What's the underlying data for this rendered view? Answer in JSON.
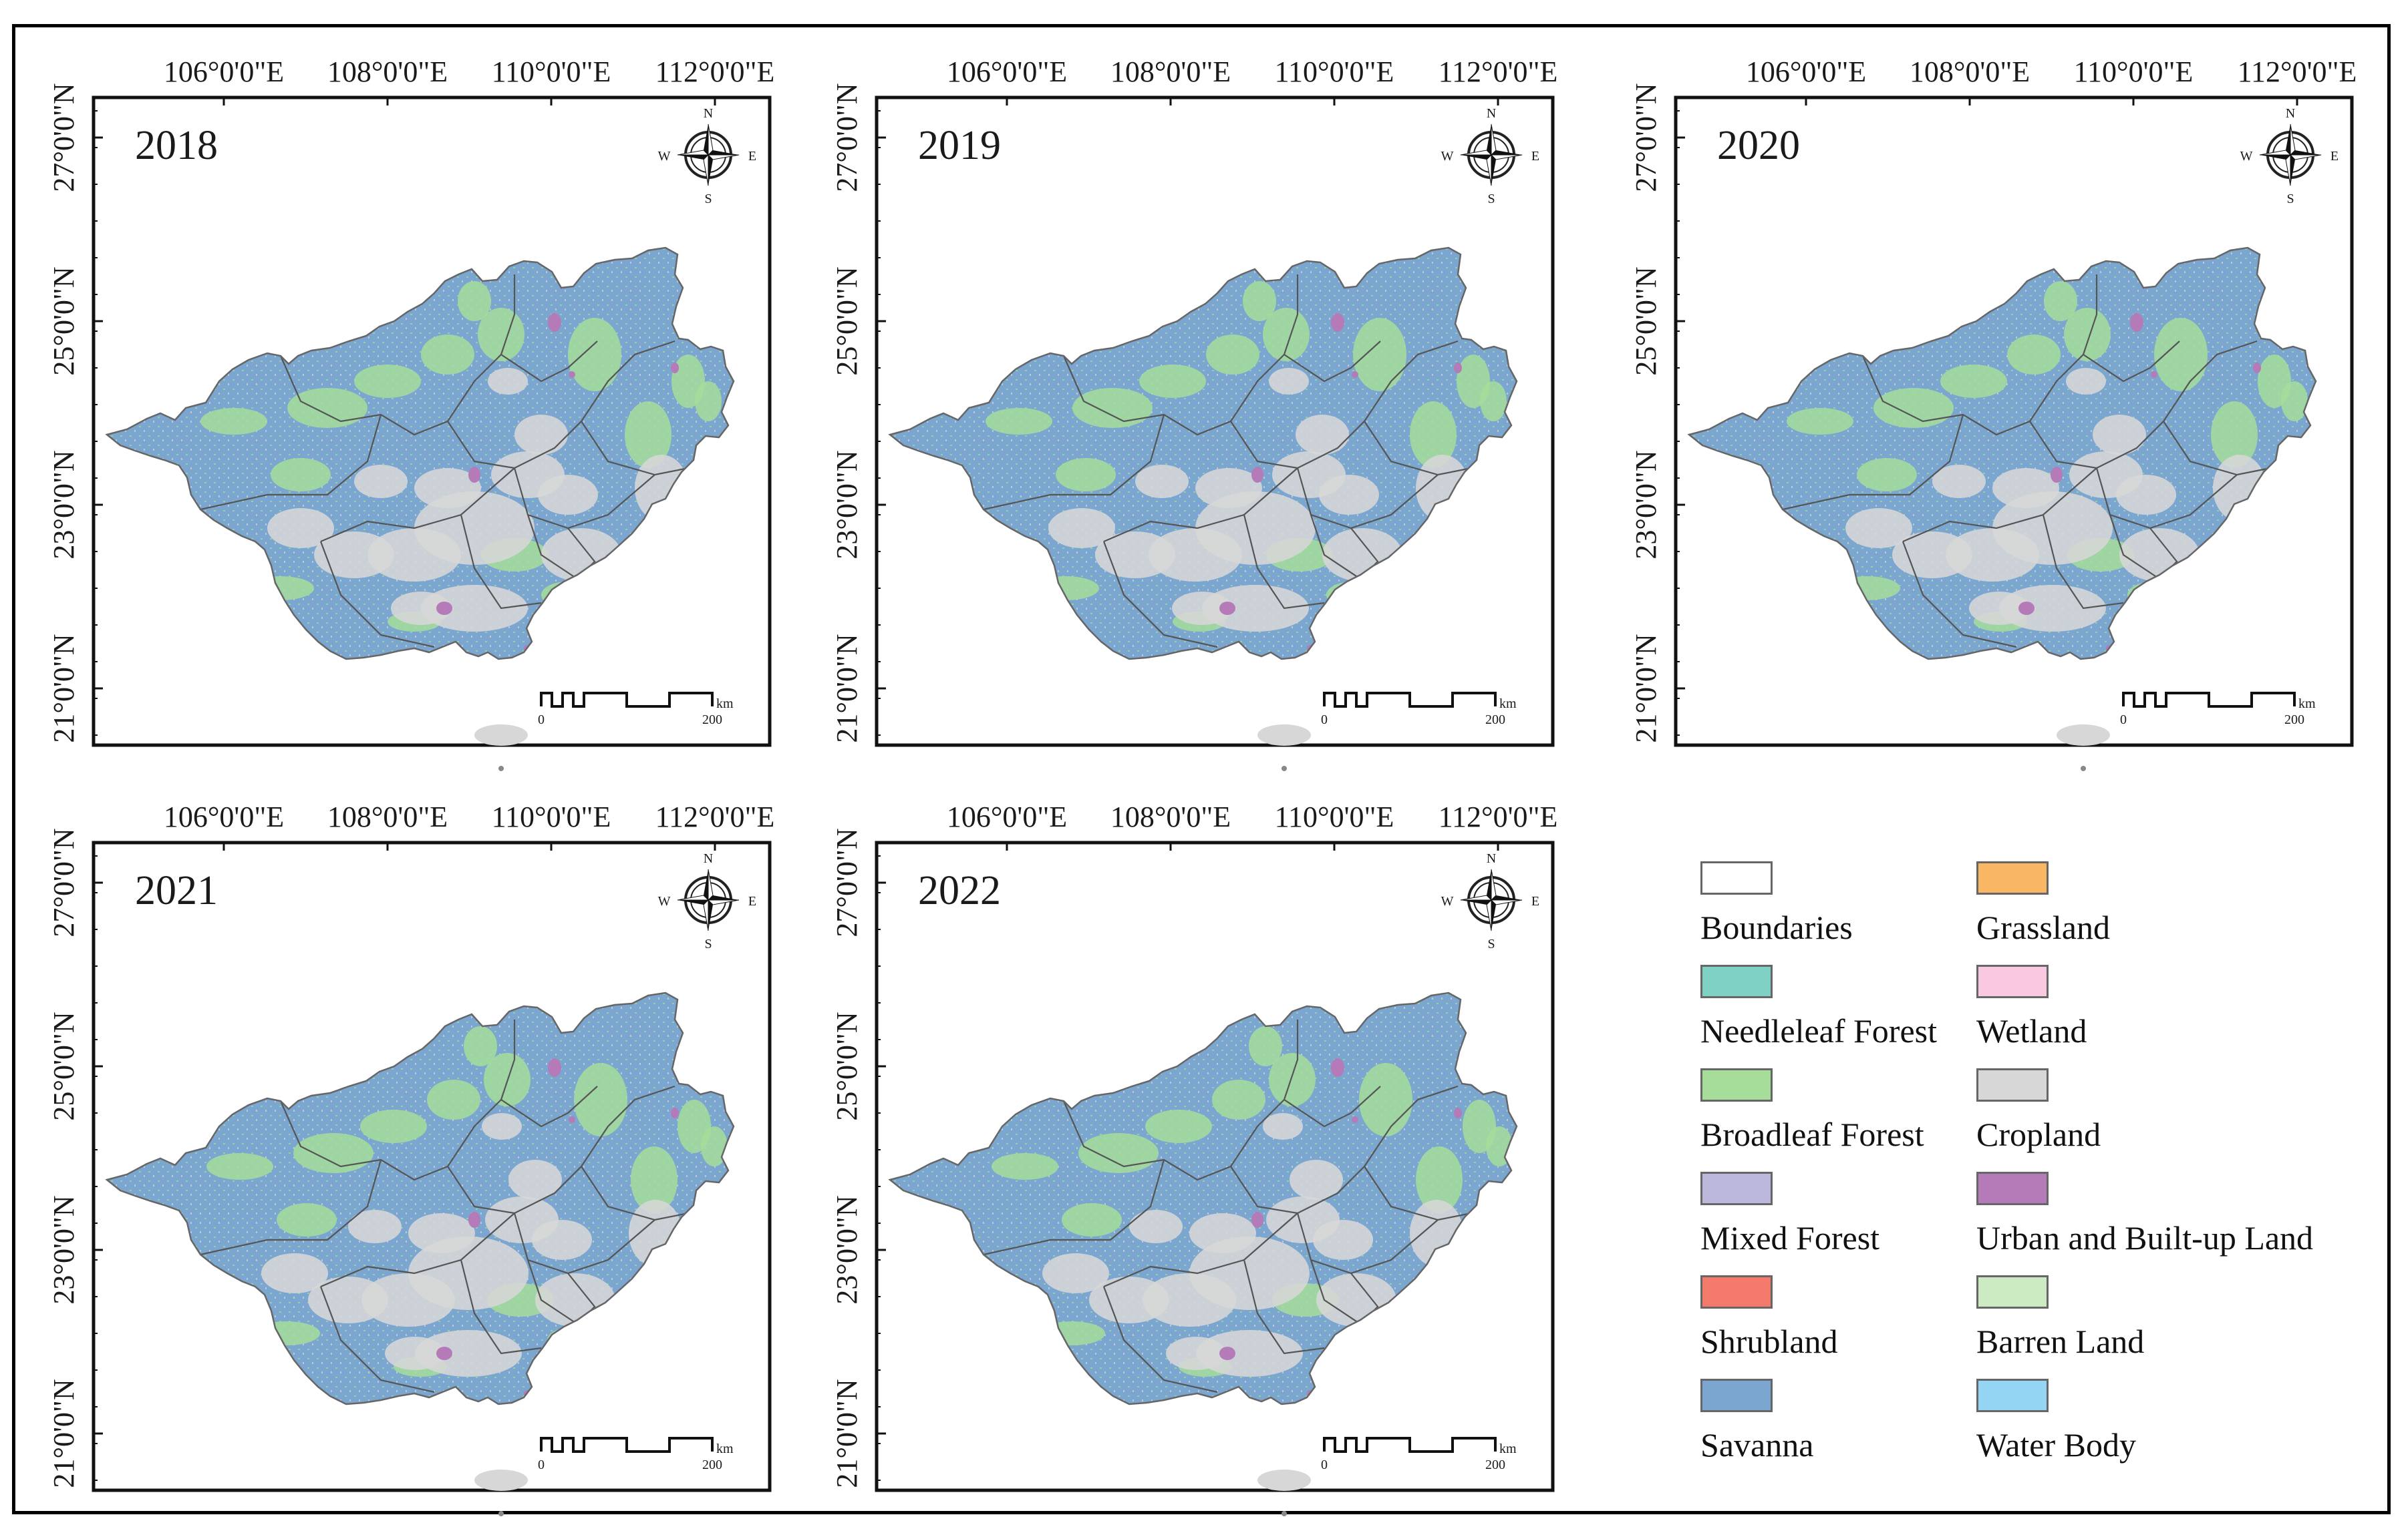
{
  "panels": [
    {
      "year": "2018"
    },
    {
      "year": "2019"
    },
    {
      "year": "2020"
    },
    {
      "year": "2021"
    },
    {
      "year": "2022"
    }
  ],
  "axes": {
    "longitude_labels": [
      "106°0'0\"E",
      "108°0'0\"E",
      "110°0'0\"E",
      "112°0'0\"E"
    ],
    "latitude_labels": [
      "27°0'0\"N",
      "25°0'0\"N",
      "23°0'0\"N",
      "21°0'0\"N"
    ]
  },
  "compass": {
    "n": "N",
    "s": "S",
    "e": "E",
    "w": "W"
  },
  "scale_bar": {
    "start": "0",
    "end": "200",
    "unit": "km"
  },
  "legend": {
    "items": [
      {
        "label": "Boundaries",
        "color": "#ffffff"
      },
      {
        "label": "Needleleaf Forest",
        "color": "#7fd1c4"
      },
      {
        "label": "Broadleaf Forest",
        "color": "#a6dd9a"
      },
      {
        "label": "Mixed Forest",
        "color": "#bcb8dc"
      },
      {
        "label": "Shrubland",
        "color": "#f47a6b"
      },
      {
        "label": "Savanna",
        "color": "#7ba6d0"
      },
      {
        "label": "Grassland",
        "color": "#f9b663"
      },
      {
        "label": "Wetland",
        "color": "#f9c9e1"
      },
      {
        "label": "Cropland",
        "color": "#d7d7d7"
      },
      {
        "label": "Urban and Built-up Land",
        "color": "#b57ab8"
      },
      {
        "label": "Barren Land",
        "color": "#cdebc3"
      },
      {
        "label": "Water Body",
        "color": "#93d5f2"
      }
    ]
  },
  "colors": {
    "savanna": "#7ba6d0",
    "broadleaf": "#a6dd9a",
    "cropland": "#d7d7d7",
    "urban": "#b57ab8",
    "boundary_line": "#555555"
  }
}
